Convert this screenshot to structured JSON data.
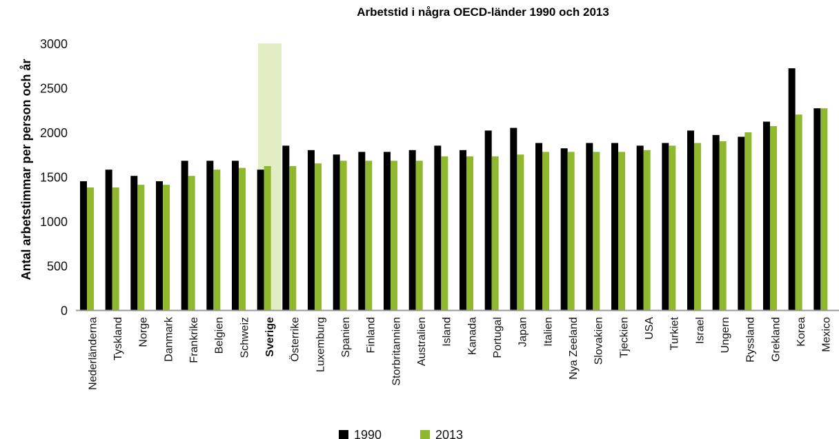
{
  "chart_data": {
    "type": "bar",
    "title": "Arbetstid i några OECD-länder 1990 och 2013",
    "xlabel": "",
    "ylabel": "Antal arbetstimmar per person och år",
    "ylim": [
      0,
      3000
    ],
    "yticks": [
      0,
      500,
      1000,
      1500,
      2000,
      2500,
      3000
    ],
    "grid": false,
    "legend_position": "bottom-center",
    "highlight_category": "Sverige",
    "categories": [
      "Nederländerna",
      "Tyskland",
      "Norge",
      "Danmark",
      "Frankrike",
      "Belgien",
      "Schweiz",
      "Sverige",
      "Österrike",
      "Luxemburg",
      "Spanien",
      "Finland",
      "Storbritannien",
      "Australien",
      "Island",
      "Kanada",
      "Portugal",
      "Japan",
      "Italien",
      "Nya Zeeland",
      "Slovakien",
      "Tjeckien",
      "USA",
      "Turkiet",
      "Israel",
      "Ungern",
      "Ryssland",
      "Grekland",
      "Korea",
      "Mexico"
    ],
    "series": [
      {
        "name": "1990",
        "color": "#000000",
        "values": [
          1450,
          1580,
          1510,
          1450,
          1680,
          1680,
          1680,
          1580,
          1850,
          1800,
          1750,
          1780,
          1780,
          1800,
          1850,
          1800,
          2020,
          2050,
          1880,
          1820,
          1880,
          1880,
          1850,
          1880,
          2020,
          1970,
          1950,
          2120,
          2720,
          2270
        ]
      },
      {
        "name": "2013",
        "color": "#8fb82e",
        "values": [
          1380,
          1380,
          1410,
          1410,
          1510,
          1580,
          1600,
          1620,
          1620,
          1650,
          1680,
          1680,
          1680,
          1680,
          1730,
          1730,
          1730,
          1750,
          1780,
          1780,
          1780,
          1780,
          1800,
          1850,
          1880,
          1900,
          2000,
          2070,
          2200,
          2270
        ]
      }
    ],
    "colors": {
      "highlight": "#e2edc4",
      "axis": "#999999"
    }
  }
}
